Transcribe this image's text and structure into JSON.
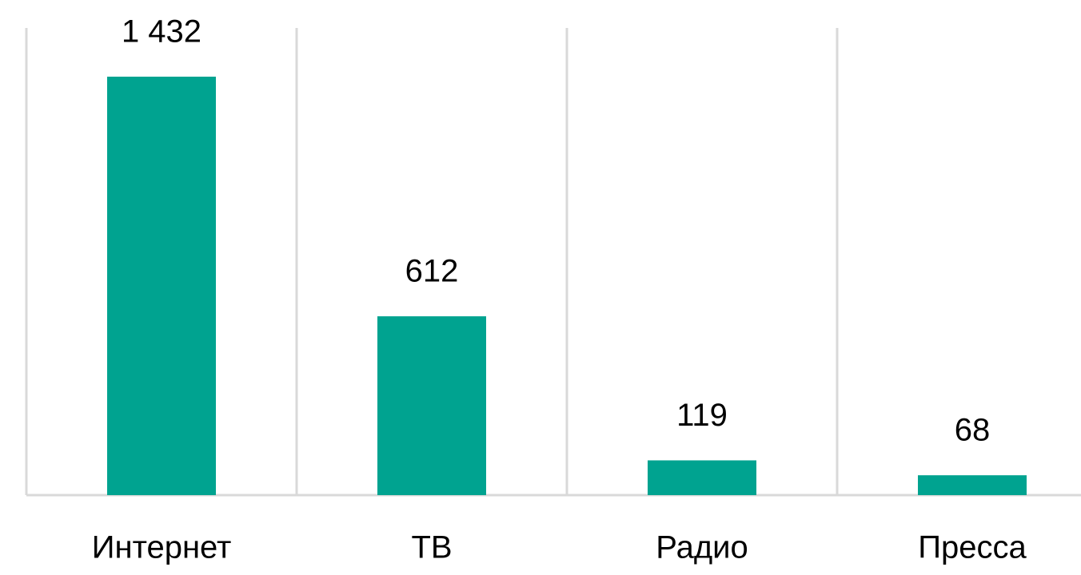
{
  "chart_data": {
    "type": "bar",
    "categories": [
      "Интернет",
      "ТВ",
      "Радио",
      "Пресса"
    ],
    "values": [
      1432,
      612,
      119,
      68
    ],
    "value_labels": [
      "1 432",
      "612",
      "119",
      "68"
    ],
    "color": "#00a390"
  }
}
